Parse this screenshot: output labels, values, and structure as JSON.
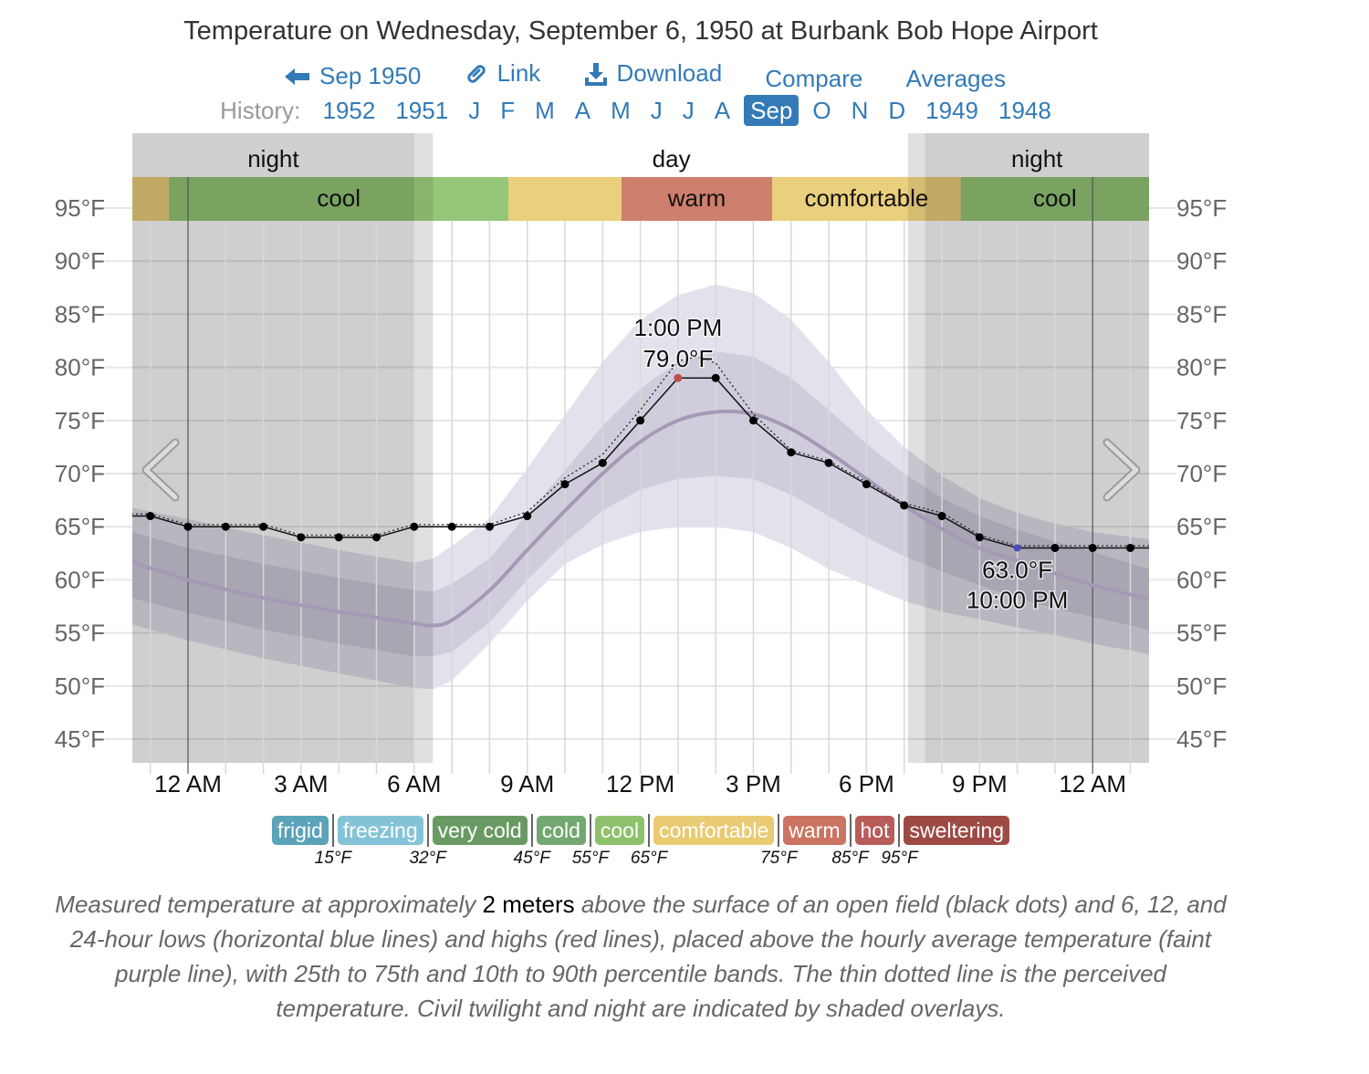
{
  "page": {
    "title": "Temperature on Wednesday, September 6, 1950 at Burbank Bob Hope Airport",
    "nav": {
      "back_label": "Sep 1950",
      "link_label": "Link",
      "download_label": "Download",
      "compare_label": "Compare",
      "averages_label": "Averages",
      "icons": {
        "back": "arrow-left-icon",
        "link": "link-icon",
        "download": "download-icon"
      }
    },
    "history": {
      "label": "History:",
      "items": [
        {
          "label": "1952",
          "selected": false
        },
        {
          "label": "1951",
          "selected": false
        },
        {
          "label": "J",
          "selected": false
        },
        {
          "label": "F",
          "selected": false
        },
        {
          "label": "M",
          "selected": false
        },
        {
          "label": "A",
          "selected": false
        },
        {
          "label": "M",
          "selected": false
        },
        {
          "label": "J",
          "selected": false
        },
        {
          "label": "J",
          "selected": false
        },
        {
          "label": "A",
          "selected": false
        },
        {
          "label": "Sep",
          "selected": true
        },
        {
          "label": "O",
          "selected": false
        },
        {
          "label": "N",
          "selected": false
        },
        {
          "label": "D",
          "selected": false
        },
        {
          "label": "1949",
          "selected": false
        },
        {
          "label": "1948",
          "selected": false
        }
      ]
    },
    "caption": {
      "before": "Measured temperature at approximately ",
      "bold": "2 meters",
      "after": " above the surface of an open field (black dots) and 6, 12, and 24-hour lows (horizontal blue lines) and highs (red lines), placed above the hourly average temperature (faint purple line), with 25th to 75th and 10th to 90th percentile bands. The thin dotted line is the perceived temperature. Civil twilight and night are indicated by shaded overlays."
    },
    "legend": {
      "categories": [
        {
          "label": "frigid",
          "color": "#5ba3b9"
        },
        {
          "label": "freezing",
          "color": "#84c3d7"
        },
        {
          "label": "very cold",
          "color": "#6a9a63"
        },
        {
          "label": "cold",
          "color": "#73a871"
        },
        {
          "label": "cool",
          "color": "#8dc16c"
        },
        {
          "label": "comfortable",
          "color": "#e8cb72"
        },
        {
          "label": "warm",
          "color": "#cb7461"
        },
        {
          "label": "hot",
          "color": "#b85c5a"
        },
        {
          "label": "sweltering",
          "color": "#9d4a45"
        }
      ],
      "thresholds": [
        "15°F",
        "32°F",
        "45°F",
        "55°F",
        "65°F",
        "75°F",
        "85°F",
        "95°F"
      ]
    }
  },
  "chart_data": {
    "type": "line",
    "title": "Temperature on Wednesday, September 6, 1950 at Burbank Bob Hope Airport",
    "xlabel": "",
    "ylabel": "",
    "x_unit": "hours since midnight",
    "xlim": [
      -1.5,
      25.5
    ],
    "ylim": [
      45,
      95
    ],
    "grid": true,
    "y_ticks": [
      95,
      90,
      85,
      80,
      75,
      70,
      65,
      60,
      55,
      50,
      45
    ],
    "y_tick_labels": [
      "95°F",
      "90°F",
      "85°F",
      "80°F",
      "75°F",
      "70°F",
      "65°F",
      "60°F",
      "55°F",
      "50°F",
      "45°F"
    ],
    "x_ticks": [
      0,
      3,
      6,
      9,
      12,
      15,
      18,
      21,
      24
    ],
    "x_tick_labels": [
      "12 AM",
      "3 AM",
      "6 AM",
      "9 AM",
      "12 PM",
      "3 PM",
      "6 PM",
      "9 PM",
      "12 AM"
    ],
    "series": [
      {
        "name": "Measured temperature",
        "x": [
          -1,
          0,
          1,
          2,
          3,
          4,
          5,
          6,
          7,
          8,
          9,
          10,
          11,
          12,
          13,
          14,
          15,
          16,
          17,
          18,
          19,
          20,
          21,
          22,
          23,
          24,
          25
        ],
        "values": [
          66,
          65,
          65,
          65,
          64,
          64,
          64,
          65,
          65,
          65,
          66,
          69,
          71,
          75,
          79,
          79,
          75,
          72,
          71,
          69,
          67,
          66,
          64,
          63,
          63,
          63,
          63
        ]
      },
      {
        "name": "Perceived temperature",
        "x": [
          -1.5,
          -1,
          0,
          1,
          2,
          3,
          4,
          5,
          6,
          7,
          8,
          9,
          10,
          11,
          12,
          13,
          13.5,
          14,
          15,
          16,
          17,
          18,
          19,
          20,
          21,
          22,
          23,
          24,
          25,
          25.5
        ],
        "values": [
          66.2,
          66.2,
          65.2,
          65.2,
          65.2,
          64.2,
          64.2,
          64.2,
          65.2,
          65.2,
          65.2,
          66.4,
          69.6,
          71.8,
          76,
          80.6,
          81,
          80.4,
          75.6,
          72.2,
          71.2,
          69.2,
          67.2,
          66.3,
          64.2,
          63.2,
          63.2,
          63.2,
          63.2,
          63.2
        ]
      },
      {
        "name": "Hourly average temperature",
        "x": [
          -1.5,
          0,
          2,
          4,
          6,
          6.5,
          7,
          8,
          9,
          10,
          11,
          12,
          13,
          14,
          15,
          16,
          17,
          18,
          19,
          20,
          21,
          22,
          23,
          24,
          25.5
        ],
        "values": [
          61.7,
          60,
          58.3,
          57,
          55.9,
          55.7,
          56.2,
          59,
          62.8,
          66.5,
          70,
          73,
          75,
          75.8,
          75.6,
          74.2,
          72,
          69.5,
          67,
          64.8,
          63,
          61.8,
          60.6,
          59.5,
          58.2
        ]
      }
    ],
    "bands": [
      {
        "name": "10th to 90th percentile",
        "x": [
          -1.5,
          0,
          2,
          4,
          6,
          6.5,
          7,
          8,
          9,
          10,
          11,
          12,
          13,
          14,
          15,
          16,
          17,
          18,
          19,
          20,
          21,
          22,
          23,
          24,
          25.5
        ],
        "low": [
          55.8,
          54.3,
          52.6,
          51.2,
          49.8,
          49.7,
          50.5,
          54,
          58,
          61.5,
          63.3,
          64.5,
          65,
          65,
          64.5,
          63,
          61,
          59.5,
          58,
          57,
          56.3,
          55.5,
          54.8,
          54,
          53
        ],
        "high": [
          66.8,
          65.7,
          64.2,
          62.8,
          61.6,
          62,
          63.2,
          65.8,
          70.5,
          75.5,
          80.5,
          84.5,
          86.8,
          87.8,
          87,
          84.5,
          80.5,
          76,
          72.5,
          69.8,
          67.7,
          66.3,
          65.3,
          64.5,
          63.8
        ]
      },
      {
        "name": "25th to 75th percentile",
        "x": [
          -1.5,
          0,
          2,
          4,
          6,
          6.5,
          7,
          8,
          9,
          10,
          11,
          12,
          13,
          14,
          15,
          16,
          17,
          18,
          19,
          20,
          21,
          22,
          23,
          24,
          25.5
        ],
        "low": [
          58.3,
          56.9,
          55.3,
          54,
          52.8,
          52.8,
          53.2,
          56,
          60,
          63.5,
          66.5,
          68.5,
          69.5,
          69.8,
          69.5,
          68,
          66,
          64,
          62.2,
          60.8,
          59.5,
          58.3,
          57.3,
          56.5,
          55.3
        ],
        "high": [
          64.5,
          63,
          61.5,
          60.2,
          59,
          58.9,
          59.6,
          62,
          66.2,
          70.3,
          74.5,
          78,
          80.5,
          81.5,
          81,
          79,
          76,
          72.8,
          70,
          67.7,
          66,
          64.7,
          63.6,
          62.6,
          61
        ]
      }
    ],
    "annotations": [
      {
        "kind": "high",
        "x": 13,
        "value": 79,
        "label_time": "1:00 PM",
        "label_temp": "79.0°F",
        "color": "#c0504d"
      },
      {
        "kind": "low",
        "x": 22,
        "value": 63,
        "label_temp": "63.0°F",
        "label_time": "10:00 PM",
        "color": "#4b4bc4"
      }
    ],
    "daylight": [
      {
        "label": "night",
        "from": -1.5,
        "to": 6.0,
        "kind": "night"
      },
      {
        "label": "",
        "from": 6.0,
        "to": 6.5,
        "kind": "twilight"
      },
      {
        "label": "day",
        "from": 6.5,
        "to": 19.1,
        "kind": "day"
      },
      {
        "label": "",
        "from": 19.1,
        "to": 19.55,
        "kind": "twilight"
      },
      {
        "label": "night",
        "from": 19.55,
        "to": 25.5,
        "kind": "night"
      }
    ],
    "comfort_bands": [
      {
        "label": "",
        "from": -1.5,
        "to": -0.5,
        "color": "#e8cb72"
      },
      {
        "label": "cool",
        "from": -0.5,
        "to": 8.5,
        "color": "#8dc16c"
      },
      {
        "label": "",
        "from": 8.5,
        "to": 11.5,
        "color": "#e8cb72"
      },
      {
        "label": "warm",
        "from": 11.5,
        "to": 15.5,
        "color": "#cb7461"
      },
      {
        "label": "comfortable",
        "from": 15.5,
        "to": 20.5,
        "color": "#e8cb72"
      },
      {
        "label": "cool",
        "from": 20.5,
        "to": 25.5,
        "color": "#8dc16c"
      }
    ],
    "colors": {
      "outer_band": "#e4e1ec",
      "inner_band": "#d1ccdc",
      "avg_line": "#a49ab6",
      "night_shade": "#000000",
      "measured_line": "#000000"
    }
  }
}
